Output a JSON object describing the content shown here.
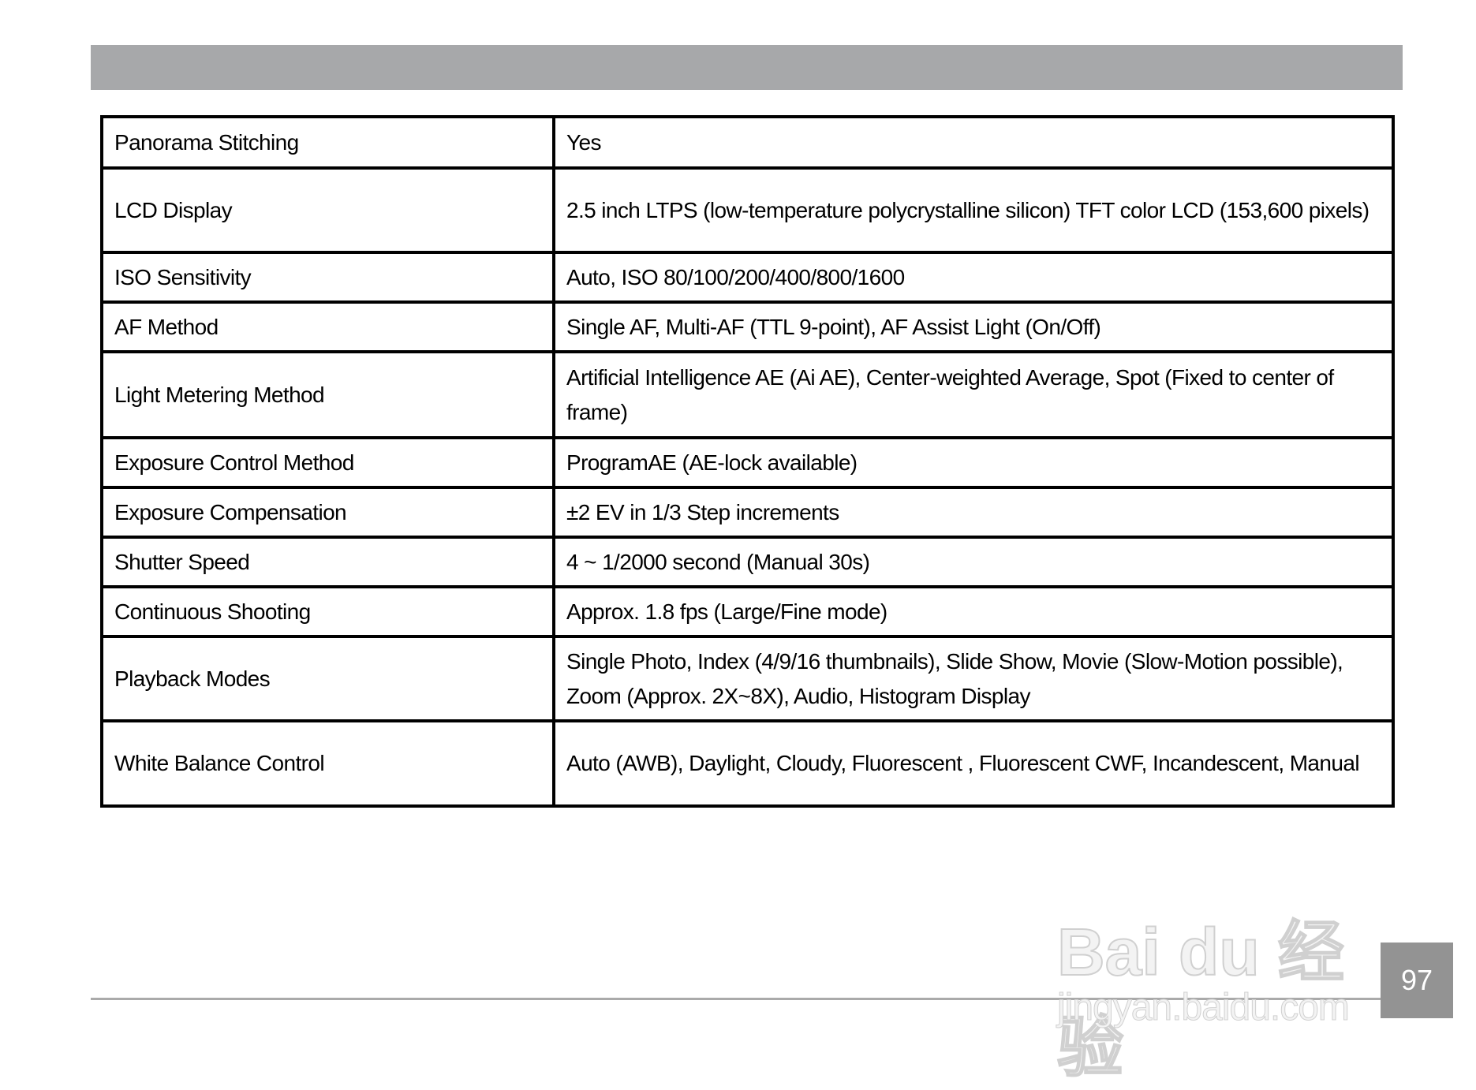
{
  "spec_table": [
    {
      "label": "Panorama Stitching",
      "value": "Yes"
    },
    {
      "label": "LCD Display",
      "value": "2.5 inch LTPS (low-temperature polycrystalline silicon) TFT color LCD (153,600 pixels)"
    },
    {
      "label": "ISO Sensitivity",
      "value": "Auto, ISO 80/100/200/400/800/1600"
    },
    {
      "label": "AF Method",
      "value": "Single AF, Multi-AF (TTL 9-point), AF Assist Light (On/Off)"
    },
    {
      "label": "Light Metering Method",
      "value": "Artificial Intelligence AE (Ai AE), Center-weighted Average, Spot (Fixed to center of frame)"
    },
    {
      "label": "Exposure Control Method",
      "value": "ProgramAE (AE-lock available)"
    },
    {
      "label": "Exposure Compensation",
      "value": "±2 EV in 1/3 Step increments"
    },
    {
      "label": "Shutter Speed",
      "value": "4 ~ 1/2000 second (Manual 30s)"
    },
    {
      "label": "Continuous Shooting",
      "value": "Approx. 1.8 fps  (Large/Fine mode)"
    },
    {
      "label": "Playback Modes",
      "value": "Single Photo, Index (4/9/16 thumbnails), Slide Show, Movie (Slow-Motion possible), Zoom (Approx. 2X~8X), Audio, Histogram Display"
    },
    {
      "label": "White Balance Control",
      "value": "Auto (AWB), Daylight, Cloudy, Fluorescent , Fluorescent CWF, Incandescent, Manual"
    }
  ],
  "page_number": "97",
  "watermark": {
    "logo": "Bai du 经验",
    "url": "jingyan.baidu.com"
  },
  "colors": {
    "header_bar": "#a7a8aa",
    "page_box": "#939393",
    "border": "#000000"
  }
}
